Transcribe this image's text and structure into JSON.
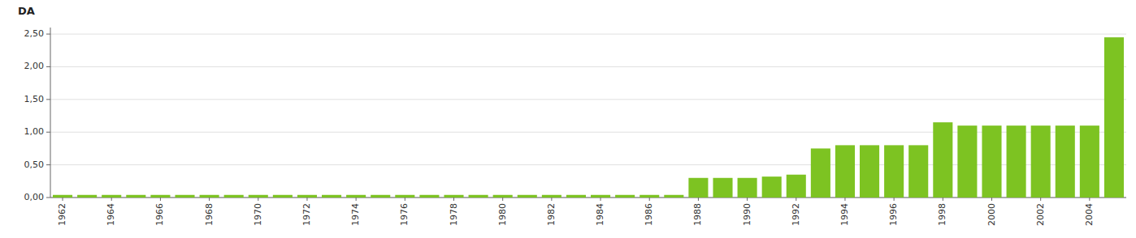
{
  "chart_data": {
    "type": "bar",
    "y_label": "DA",
    "categories": [
      "1962",
      null,
      "1964",
      null,
      "1966",
      null,
      "1968",
      null,
      "1970",
      null,
      "1972",
      null,
      "1974",
      null,
      "1976",
      null,
      "1978",
      null,
      "1980",
      null,
      "1982",
      null,
      "1984",
      null,
      "1986",
      null,
      "1988",
      null,
      "1990",
      null,
      "1992",
      null,
      "1994",
      null,
      "1996",
      null,
      "1998",
      null,
      "2000",
      null,
      "2002",
      null,
      "2004",
      null
    ],
    "values": [
      0.04,
      0.04,
      0.04,
      0.04,
      0.04,
      0.04,
      0.04,
      0.04,
      0.04,
      0.04,
      0.04,
      0.04,
      0.04,
      0.04,
      0.04,
      0.04,
      0.04,
      0.04,
      0.04,
      0.04,
      0.04,
      0.04,
      0.04,
      0.04,
      0.04,
      0.04,
      0.3,
      0.3,
      0.3,
      0.32,
      0.35,
      0.75,
      0.8,
      0.8,
      0.8,
      0.8,
      1.15,
      1.1,
      1.1,
      1.1,
      1.1,
      1.1,
      1.1,
      2.45
    ],
    "color": "#7DC322",
    "ylim": [
      0,
      2.6
    ],
    "yticks": [
      {
        "value": 0.0,
        "label": "0,00"
      },
      {
        "value": 0.5,
        "label": "0,50"
      },
      {
        "value": 1.0,
        "label": "1,00"
      },
      {
        "value": 1.5,
        "label": "1,50"
      },
      {
        "value": 2.0,
        "label": "2,00"
      },
      {
        "value": 2.5,
        "label": "2,50"
      }
    ],
    "grid": true
  }
}
